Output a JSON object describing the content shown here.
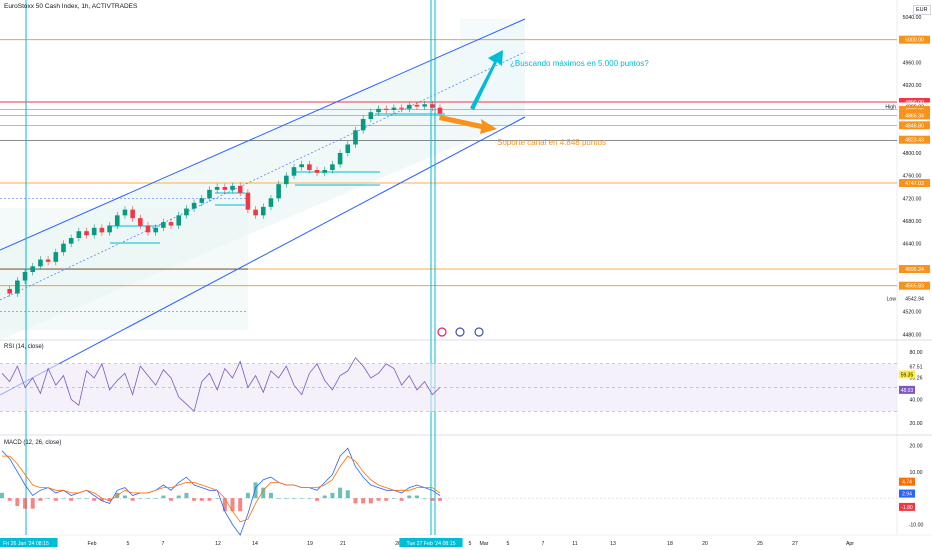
{
  "header": {
    "symbol_title": "EuroStoxx 50 Cash Index, 1h, ACTIVTRADES",
    "currency": "EUR"
  },
  "chart_data": [
    {
      "type": "line",
      "name": "price",
      "subtype": "candlestick",
      "y_ticks": [
        "5040.00",
        "4960.00",
        "4920.00",
        "4800.00",
        "4760.00",
        "4720.00",
        "4680.00",
        "4640.00",
        "4520.00",
        "4480.00"
      ],
      "price_labels": [
        {
          "text": "5000.00",
          "kind": "orange"
        },
        {
          "text": "4890.00",
          "kind": "red"
        },
        {
          "text": "4889.82",
          "kind": "plain"
        },
        {
          "text": "4877.00",
          "kind": "orange"
        },
        {
          "text": "24:49",
          "kind": "orange"
        },
        {
          "text": "4866.34",
          "kind": "orange"
        },
        {
          "text": "4848.80",
          "kind": "orange"
        },
        {
          "text": "4823.43",
          "kind": "orange"
        },
        {
          "text": "4747.03",
          "kind": "orange"
        },
        {
          "text": "4595.24",
          "kind": "orange"
        },
        {
          "text": "4565.83",
          "kind": "orange"
        },
        {
          "text": "4542.94",
          "kind": "plain"
        }
      ],
      "high_label": "High",
      "low_label": "Low",
      "ylim": [
        4470,
        5070
      ],
      "close_series": [
        4560,
        4552,
        4575,
        4590,
        4600,
        4612,
        4608,
        4625,
        4640,
        4650,
        4662,
        4655,
        4668,
        4660,
        4672,
        4690,
        4700,
        4685,
        4672,
        4660,
        4668,
        4678,
        4672,
        4690,
        4702,
        4712,
        4720,
        4735,
        4740,
        4735,
        4742,
        4730,
        4700,
        4690,
        4705,
        4720,
        4745,
        4760,
        4775,
        4780,
        4770,
        4765,
        4770,
        4780,
        4800,
        4815,
        4840,
        4860,
        4872,
        4878,
        4876,
        4880,
        4878,
        4885,
        4882,
        4886,
        4880,
        4870
      ],
      "annotations": [
        {
          "text": "¿Buscando máximos en 5.000 puntos?",
          "color": "#00bcd4"
        },
        {
          "text": "Soporte canal en 4.848 puntos",
          "color": "#f7931a"
        }
      ]
    },
    {
      "type": "line",
      "name": "RSI (14, close)",
      "label": "RSI (14, close)",
      "y_ticks": [
        "80.00",
        "67.51",
        "58.26",
        "40.00",
        "20.00"
      ],
      "tag_labels": [
        {
          "text": "59.35",
          "kind": "yellow"
        },
        {
          "text": "48.03",
          "kind": "purple"
        }
      ],
      "values": [
        62,
        55,
        68,
        50,
        58,
        45,
        66,
        52,
        60,
        40,
        35,
        64,
        58,
        70,
        48,
        56,
        62,
        44,
        68,
        60,
        52,
        65,
        58,
        42,
        36,
        30,
        55,
        62,
        48,
        66,
        58,
        72,
        50,
        60,
        46,
        64,
        58,
        68,
        52,
        44,
        62,
        70,
        56,
        48,
        60,
        64,
        75,
        68,
        58,
        62,
        70,
        66,
        52,
        60,
        48,
        55,
        44,
        50
      ]
    },
    {
      "type": "line",
      "name": "MACD (12, 26, close)",
      "label": "MACD (12, 26, close)",
      "y_ticks": [
        "20.00",
        "10.00",
        "-10.00"
      ],
      "tag_labels": [
        {
          "text": "4.74",
          "kind": "orange"
        },
        {
          "text": "2.94",
          "kind": "blue"
        },
        {
          "text": "-1.80",
          "kind": "red"
        }
      ],
      "macd": [
        18,
        15,
        10,
        5,
        1,
        3,
        4,
        2,
        3,
        1,
        2,
        3,
        1,
        -1,
        -2,
        3,
        4,
        1,
        2,
        2,
        3,
        5,
        3,
        6,
        8,
        5,
        4,
        3,
        3,
        -5,
        -10,
        -14,
        -6,
        4,
        7,
        8,
        6,
        5,
        5,
        4,
        4,
        3,
        6,
        9,
        16,
        19,
        12,
        8,
        5,
        4,
        3,
        3,
        2,
        4,
        5,
        4,
        3,
        1
      ],
      "signal": [
        16,
        16,
        13,
        9,
        5,
        4,
        4,
        3,
        3,
        2,
        2,
        3,
        2,
        0,
        -1,
        1,
        3,
        2,
        2,
        2,
        3,
        4,
        4,
        5,
        6,
        6,
        5,
        4,
        3,
        0,
        -5,
        -9,
        -8,
        -2,
        3,
        6,
        6,
        5,
        5,
        4,
        4,
        4,
        5,
        7,
        12,
        16,
        14,
        10,
        7,
        5,
        4,
        3,
        3,
        3,
        4,
        4,
        4,
        2
      ]
    }
  ],
  "x_axis": {
    "labels": [
      "Fri 26 Jan '24   08:15",
      "Feb",
      "5",
      "7",
      "12",
      "14",
      "19",
      "21",
      "26",
      "Tue 27 Feb '24   08:15",
      "5",
      "Mar",
      "5",
      "7",
      "11",
      "13",
      "18",
      "20",
      "25",
      "27",
      "Apr"
    ]
  },
  "colors": {
    "channel": "#2962ff",
    "orange_level": "#f7931a",
    "red_level": "#f23645",
    "cyan": "#00bcd4",
    "up_candle": "#089981",
    "down_candle": "#f23645",
    "rsi_line": "#7e57c2",
    "macd_line": "#2962ff",
    "signal_line": "#ff6d00"
  }
}
